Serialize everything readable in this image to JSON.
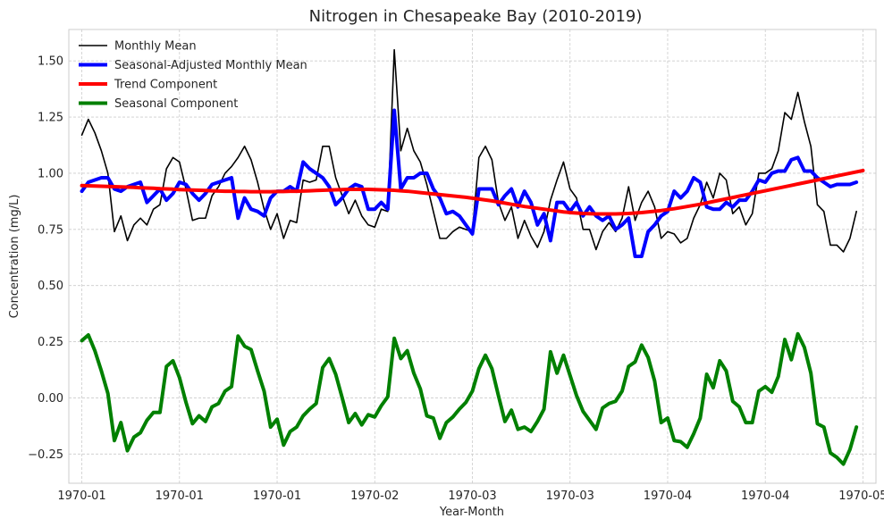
{
  "chart_data": {
    "type": "line",
    "title": "Nitrogen in Chesapeake Bay (2010-2019)",
    "xlabel": "Year-Month",
    "ylabel": "Concentration (mg/L)",
    "xlim": [
      -2,
      122
    ],
    "ylim": [
      -0.38,
      1.64
    ],
    "grid": true,
    "legend_position": "top-left",
    "x_ticks": [
      {
        "x": 0,
        "label": "1970-01"
      },
      {
        "x": 15,
        "label": "1970-01"
      },
      {
        "x": 30,
        "label": "1970-01"
      },
      {
        "x": 45,
        "label": "1970-02"
      },
      {
        "x": 60,
        "label": "1970-03"
      },
      {
        "x": 75,
        "label": "1970-03"
      },
      {
        "x": 90,
        "label": "1970-04"
      },
      {
        "x": 105,
        "label": "1970-04"
      },
      {
        "x": 120,
        "label": "1970-05"
      }
    ],
    "y_ticks": [
      -0.25,
      0.0,
      0.25,
      0.5,
      0.75,
      1.0,
      1.25,
      1.5
    ],
    "y_tick_labels": [
      "−0.25",
      "0.00",
      "0.25",
      "0.50",
      "0.75",
      "1.00",
      "1.25",
      "1.50"
    ],
    "series": [
      {
        "name": "Monthly Mean",
        "color": "#000000",
        "width": 1.6,
        "values": [
          1.17,
          1.24,
          1.18,
          1.1,
          1.0,
          0.74,
          0.81,
          0.7,
          0.77,
          0.8,
          0.77,
          0.84,
          0.86,
          1.02,
          1.07,
          1.05,
          0.93,
          0.79,
          0.8,
          0.8,
          0.9,
          0.94,
          1.0,
          1.03,
          1.07,
          1.12,
          1.06,
          0.96,
          0.84,
          0.75,
          0.82,
          0.71,
          0.79,
          0.78,
          0.97,
          0.96,
          0.97,
          1.12,
          1.12,
          0.98,
          0.9,
          0.82,
          0.88,
          0.81,
          0.77,
          0.76,
          0.84,
          0.83,
          1.55,
          1.1,
          1.2,
          1.1,
          1.05,
          0.95,
          0.83,
          0.71,
          0.71,
          0.74,
          0.76,
          0.75,
          0.74,
          1.07,
          1.12,
          1.06,
          0.87,
          0.79,
          0.85,
          0.71,
          0.79,
          0.72,
          0.67,
          0.74,
          0.88,
          0.97,
          1.05,
          0.93,
          0.89,
          0.75,
          0.75,
          0.66,
          0.74,
          0.78,
          0.74,
          0.8,
          0.94,
          0.79,
          0.87,
          0.92,
          0.85,
          0.71,
          0.74,
          0.73,
          0.69,
          0.71,
          0.8,
          0.86,
          0.96,
          0.89,
          1.0,
          0.97,
          0.82,
          0.85,
          0.77,
          0.82,
          1.0,
          1.0,
          1.02,
          1.1,
          1.27,
          1.24,
          1.36,
          1.23,
          1.12,
          0.86,
          0.83,
          0.68,
          0.68,
          0.65,
          0.71,
          0.83
        ]
      },
      {
        "name": "Seasonal-Adjusted Monthly Mean",
        "color": "#0000ff",
        "width": 4,
        "values": [
          0.92,
          0.96,
          0.97,
          0.98,
          0.98,
          0.93,
          0.92,
          0.94,
          0.95,
          0.96,
          0.87,
          0.9,
          0.93,
          0.88,
          0.91,
          0.96,
          0.95,
          0.91,
          0.88,
          0.91,
          0.95,
          0.96,
          0.97,
          0.98,
          0.8,
          0.89,
          0.84,
          0.83,
          0.81,
          0.89,
          0.92,
          0.92,
          0.94,
          0.92,
          1.05,
          1.02,
          1.0,
          0.98,
          0.94,
          0.86,
          0.89,
          0.93,
          0.95,
          0.94,
          0.84,
          0.84,
          0.87,
          0.84,
          1.28,
          0.93,
          0.98,
          0.98,
          1.0,
          1.0,
          0.93,
          0.89,
          0.82,
          0.83,
          0.81,
          0.77,
          0.73,
          0.93,
          0.93,
          0.93,
          0.86,
          0.9,
          0.93,
          0.85,
          0.92,
          0.87,
          0.77,
          0.82,
          0.7,
          0.87,
          0.87,
          0.83,
          0.87,
          0.81,
          0.85,
          0.81,
          0.79,
          0.81,
          0.75,
          0.77,
          0.8,
          0.63,
          0.63,
          0.74,
          0.77,
          0.81,
          0.83,
          0.92,
          0.89,
          0.92,
          0.98,
          0.96,
          0.85,
          0.84,
          0.84,
          0.87,
          0.85,
          0.88,
          0.88,
          0.92,
          0.97,
          0.96,
          1.0,
          1.01,
          1.01,
          1.06,
          1.07,
          1.01,
          1.01,
          0.98,
          0.96,
          0.94,
          0.95,
          0.95,
          0.95,
          0.96
        ]
      },
      {
        "name": "Trend Component",
        "color": "#ff0000",
        "width": 4,
        "values": [
          0.945,
          0.944,
          0.943,
          0.942,
          0.941,
          0.94,
          0.939,
          0.938,
          0.937,
          0.935,
          0.934,
          0.933,
          0.931,
          0.93,
          0.929,
          0.927,
          0.926,
          0.925,
          0.924,
          0.923,
          0.922,
          0.921,
          0.92,
          0.92,
          0.919,
          0.919,
          0.918,
          0.918,
          0.918,
          0.918,
          0.919,
          0.919,
          0.92,
          0.92,
          0.921,
          0.922,
          0.923,
          0.924,
          0.925,
          0.926,
          0.927,
          0.928,
          0.928,
          0.928,
          0.928,
          0.927,
          0.926,
          0.925,
          0.924,
          0.922,
          0.92,
          0.917,
          0.914,
          0.911,
          0.908,
          0.905,
          0.902,
          0.899,
          0.896,
          0.893,
          0.889,
          0.885,
          0.881,
          0.877,
          0.872,
          0.867,
          0.862,
          0.857,
          0.852,
          0.848,
          0.844,
          0.84,
          0.836,
          0.832,
          0.828,
          0.825,
          0.823,
          0.821,
          0.82,
          0.819,
          0.819,
          0.819,
          0.819,
          0.82,
          0.821,
          0.823,
          0.825,
          0.828,
          0.831,
          0.834,
          0.838,
          0.842,
          0.847,
          0.852,
          0.857,
          0.862,
          0.868,
          0.874,
          0.88,
          0.886,
          0.892,
          0.898,
          0.904,
          0.91,
          0.916,
          0.922,
          0.928,
          0.934,
          0.94,
          0.946,
          0.952,
          0.958,
          0.964,
          0.97,
          0.976,
          0.982,
          0.988,
          0.994,
          1.0,
          1.006,
          1.012
        ]
      },
      {
        "name": "Seasonal Component",
        "color": "#008000",
        "width": 4,
        "values": [
          0.255,
          0.28,
          0.21,
          0.12,
          0.02,
          -0.19,
          -0.11,
          -0.235,
          -0.175,
          -0.155,
          -0.1,
          -0.065,
          -0.065,
          0.14,
          0.165,
          0.09,
          -0.02,
          -0.115,
          -0.08,
          -0.105,
          -0.04,
          -0.025,
          0.03,
          0.05,
          0.275,
          0.23,
          0.215,
          0.12,
          0.03,
          -0.13,
          -0.095,
          -0.21,
          -0.15,
          -0.13,
          -0.08,
          -0.05,
          -0.025,
          0.135,
          0.175,
          0.105,
          0.0,
          -0.11,
          -0.07,
          -0.12,
          -0.075,
          -0.085,
          -0.035,
          0.005,
          0.265,
          0.175,
          0.21,
          0.11,
          0.04,
          -0.08,
          -0.09,
          -0.18,
          -0.11,
          -0.085,
          -0.05,
          -0.02,
          0.03,
          0.13,
          0.19,
          0.13,
          0.01,
          -0.105,
          -0.055,
          -0.14,
          -0.13,
          -0.15,
          -0.105,
          -0.05,
          0.205,
          0.11,
          0.19,
          0.1,
          0.01,
          -0.06,
          -0.1,
          -0.14,
          -0.045,
          -0.025,
          -0.015,
          0.03,
          0.14,
          0.16,
          0.235,
          0.18,
          0.075,
          -0.11,
          -0.09,
          -0.19,
          -0.195,
          -0.22,
          -0.16,
          -0.09,
          0.105,
          0.045,
          0.165,
          0.12,
          -0.015,
          -0.04,
          -0.11,
          -0.11,
          0.03,
          0.05,
          0.025,
          0.095,
          0.26,
          0.17,
          0.285,
          0.225,
          0.11,
          -0.115,
          -0.13,
          -0.245,
          -0.265,
          -0.295,
          -0.23,
          -0.13
        ]
      }
    ]
  }
}
